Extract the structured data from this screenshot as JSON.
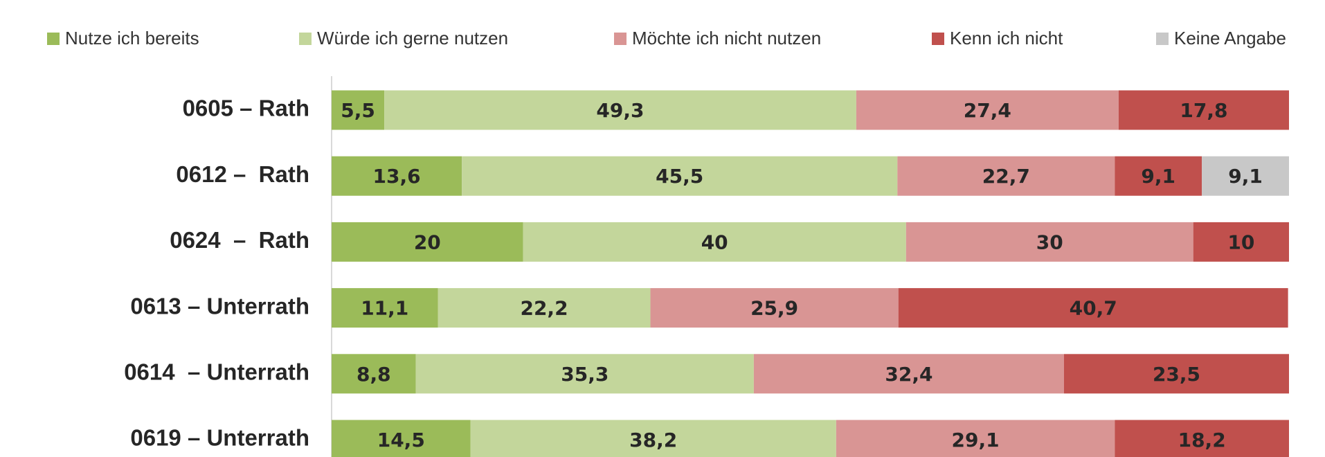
{
  "chart_data": {
    "type": "stacked_barh",
    "categories": [
      "0605 – Rath",
      "0612 –  Rath",
      "0624  –  Rath",
      "0613 – Unterrath",
      "0614  – Unterrath",
      "0619 – Unterrath"
    ],
    "series": [
      {
        "name": "Nutze ich bereits",
        "color": "#9bbb59",
        "values": [
          5.5,
          13.6,
          20,
          11.1,
          8.8,
          14.5
        ],
        "value_labels": [
          "5,5",
          "13,6",
          "20",
          "11,1",
          "8,8",
          "14,5"
        ]
      },
      {
        "name": "Würde ich gerne nutzen",
        "color": "#c3d69b",
        "values": [
          49.3,
          45.5,
          40,
          22.2,
          35.3,
          38.2
        ],
        "value_labels": [
          "49,3",
          "45,5",
          "40",
          "22,2",
          "35,3",
          "38,2"
        ]
      },
      {
        "name": "Möchte ich nicht nutzen",
        "color": "#d99594",
        "values": [
          27.4,
          22.7,
          30,
          25.9,
          32.4,
          29.1
        ],
        "value_labels": [
          "27,4",
          "22,7",
          "30",
          "25,9",
          "32,4",
          "29,1"
        ]
      },
      {
        "name": "Kenn ich nicht",
        "color": "#c0504d",
        "values": [
          17.8,
          9.1,
          10,
          40.7,
          23.5,
          18.2
        ],
        "value_labels": [
          "17,8",
          "9,1",
          "10",
          "40,7",
          "23,5",
          "18,2"
        ]
      },
      {
        "name": "Keine Angabe",
        "color": "#c8c8c8",
        "values": [
          null,
          9.1,
          null,
          null,
          null,
          null
        ],
        "value_labels": [
          null,
          "9,1",
          null,
          null,
          null,
          null
        ]
      }
    ],
    "xlim": [
      0,
      100
    ],
    "legend": "top"
  }
}
